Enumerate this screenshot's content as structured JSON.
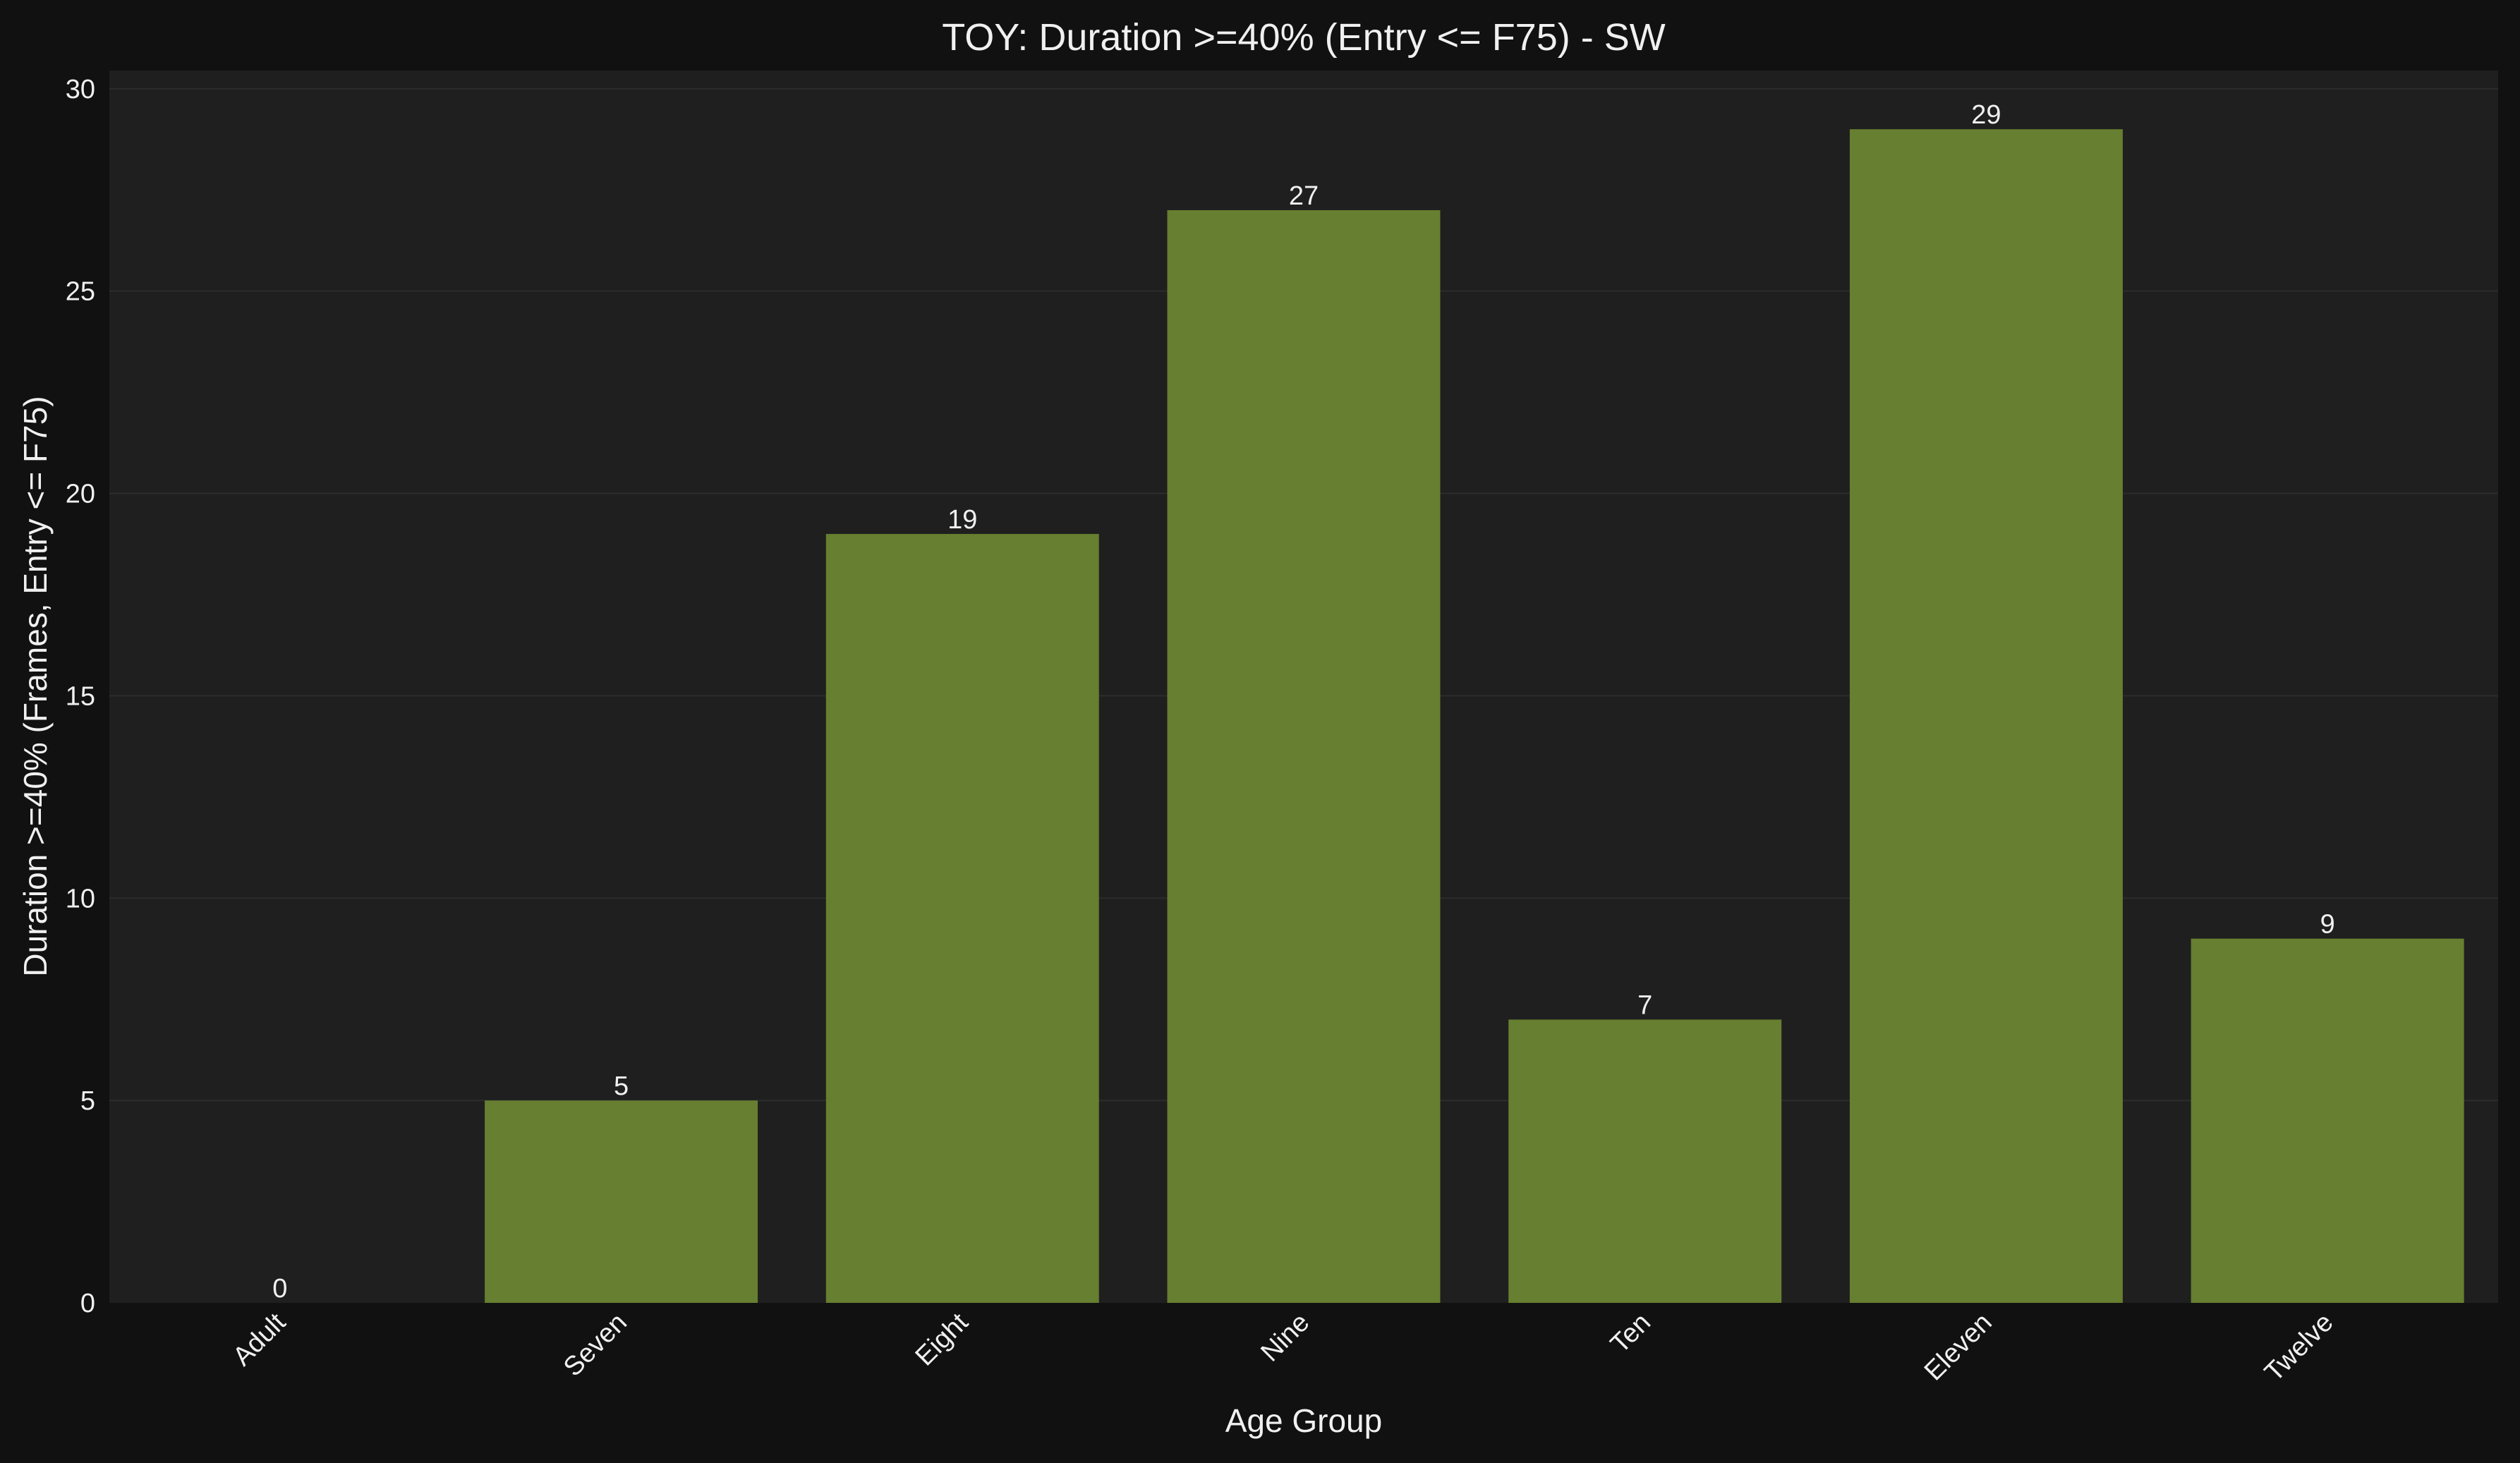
{
  "chart_data": {
    "type": "bar",
    "title": "TOY: Duration >=40% (Entry <= F75) - SW",
    "xlabel": "Age Group",
    "ylabel": "Duration >=40% (Frames, Entry <= F75)",
    "categories": [
      "Adult",
      "Seven",
      "Eight",
      "Nine",
      "Ten",
      "Eleven",
      "Twelve"
    ],
    "values": [
      0,
      5,
      19,
      27,
      7,
      29,
      9
    ],
    "data_labels": [
      "0",
      "5",
      "19",
      "27",
      "7",
      "29",
      "9"
    ],
    "ylim": [
      0,
      30.45
    ],
    "yticks": [
      0,
      5,
      10,
      15,
      20,
      25,
      30
    ],
    "ytick_labels": [
      "0",
      "5",
      "10",
      "15",
      "20",
      "25",
      "30"
    ],
    "grid": "horizontal",
    "legend": "none",
    "colors": {
      "bar": "#667f30",
      "figure_background": "#111111",
      "plot_background": "#1f1f1f",
      "grid": "#2c2c2c",
      "text": "#f0f0f0"
    }
  }
}
